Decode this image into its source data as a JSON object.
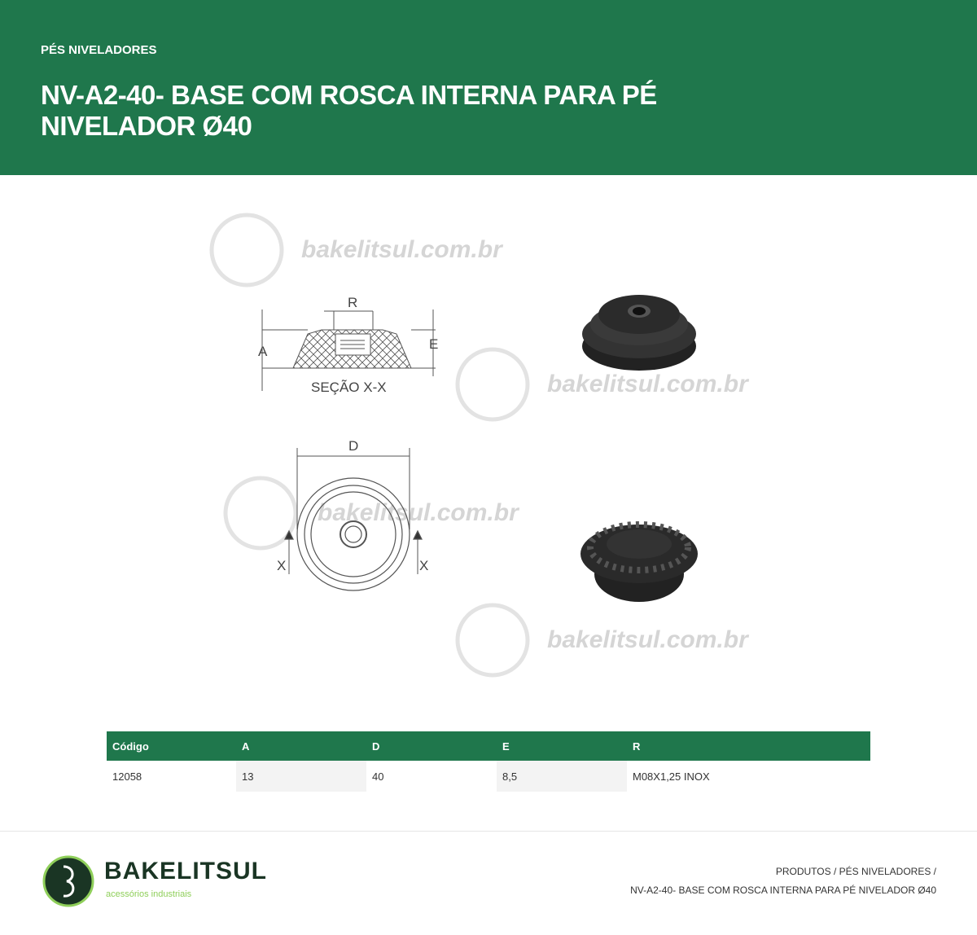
{
  "header": {
    "category": "PÉS NIVELADORES",
    "title": "NV-A2-40- BASE COM ROSCA INTERNA PARA PÉ NIVELADOR Ø40"
  },
  "watermark": {
    "text": "bakelitsul.com.br"
  },
  "drawing": {
    "section_label": "SEÇÃO X-X",
    "dim_r": "R",
    "dim_a": "A",
    "dim_e": "E",
    "dim_d": "D",
    "cut_x": "X"
  },
  "table": {
    "headers": [
      "Código",
      "A",
      "D",
      "E",
      "R"
    ],
    "rows": [
      [
        "12058",
        "13",
        "40",
        "8,5",
        "M08X1,25 INOX"
      ]
    ]
  },
  "footer": {
    "brand": "BAKELITSUL",
    "tagline": "acessórios industriais",
    "breadcrumb_line1": "PRODUTOS / PÉS NIVELADORES /",
    "breadcrumb_line2": "NV-A2-40- BASE COM ROSCA INTERNA PARA PÉ NIVELADOR Ø40"
  },
  "colors": {
    "brand_green": "#1f774c",
    "accent_lime": "#8fcf5a"
  }
}
